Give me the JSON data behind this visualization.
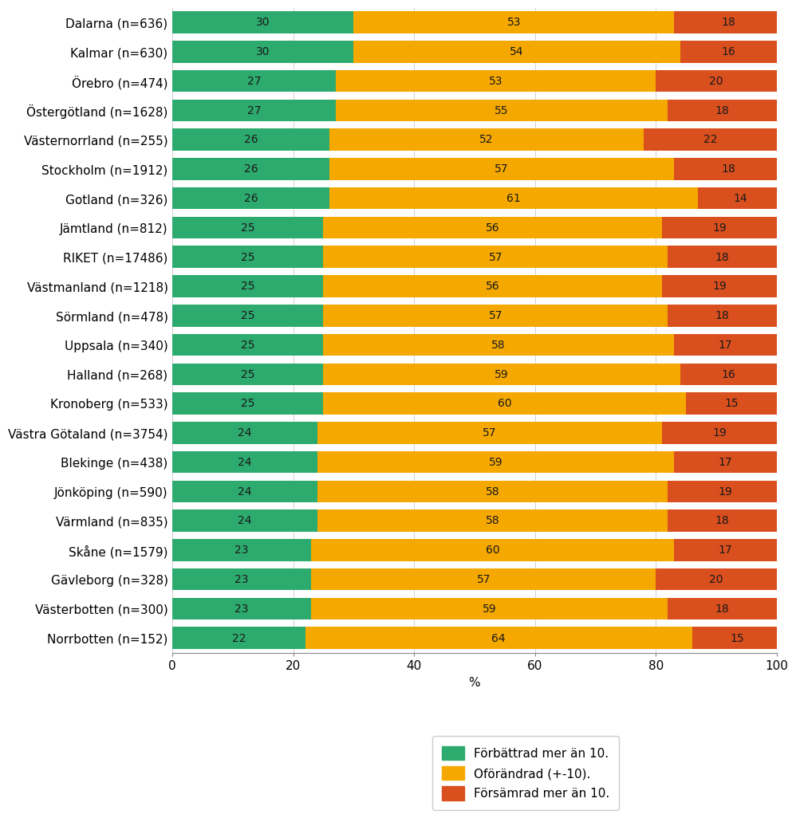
{
  "categories": [
    "Dalarna (n=636)",
    "Kalmar (n=630)",
    "Örebro (n=474)",
    "Östergötland (n=1628)",
    "Västernorrland (n=255)",
    "Stockholm (n=1912)",
    "Gotland (n=326)",
    "Jämtland (n=812)",
    "RIKET (n=17486)",
    "Västmanland (n=1218)",
    "Sörmland (n=478)",
    "Uppsala (n=340)",
    "Halland (n=268)",
    "Kronoberg (n=533)",
    "Västra Götaland (n=3754)",
    "Blekinge (n=438)",
    "Jönköping (n=590)",
    "Värmland (n=835)",
    "Skåne (n=1579)",
    "Gävleborg (n=328)",
    "Västerbotten (n=300)",
    "Norrbotten (n=152)"
  ],
  "improved": [
    30,
    30,
    27,
    27,
    26,
    26,
    26,
    25,
    25,
    25,
    25,
    25,
    25,
    25,
    24,
    24,
    24,
    24,
    23,
    23,
    23,
    22
  ],
  "unchanged": [
    53,
    54,
    53,
    55,
    52,
    57,
    61,
    56,
    57,
    56,
    57,
    58,
    59,
    60,
    57,
    59,
    58,
    58,
    60,
    57,
    59,
    64
  ],
  "worsened": [
    18,
    16,
    20,
    18,
    22,
    18,
    14,
    19,
    18,
    19,
    18,
    17,
    16,
    15,
    19,
    17,
    19,
    18,
    17,
    20,
    18,
    15
  ],
  "color_improved": "#2dab6f",
  "color_unchanged": "#f5a800",
  "color_worsened": "#d94f1e",
  "legend_labels": [
    "Förbättrad mer än 10.",
    "Oförändrad (+-10).",
    "Försämrad mer än 10."
  ],
  "xlabel": "%",
  "xlim": [
    0,
    100
  ],
  "xticks": [
    0,
    20,
    40,
    60,
    80,
    100
  ],
  "bar_height": 0.75,
  "background_color": "#ffffff",
  "text_color": "#000000",
  "fontsize_labels": 11,
  "fontsize_bar_text": 10,
  "fontsize_axis": 11,
  "fontsize_legend": 11
}
